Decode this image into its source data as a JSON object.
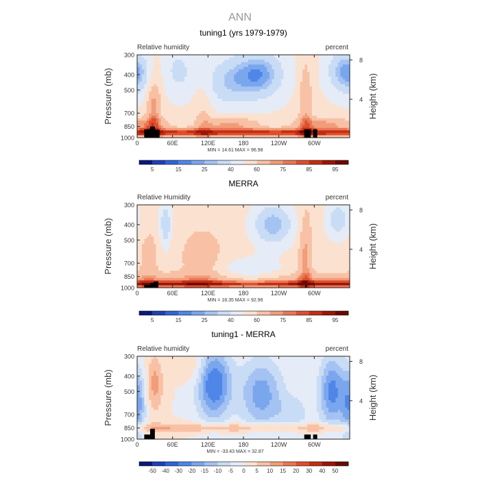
{
  "figure_title": "ANN",
  "colors": {
    "text": "#333333",
    "title_gray": "#999999",
    "frame": "#222222",
    "mask": "#000000"
  },
  "chart_data": [
    {
      "type": "heatmap",
      "title": "tuning1 (yrs 1979-1979)",
      "left_label": "Relative humidity",
      "right_label": "percent",
      "ylabel": "Pressure (mb)",
      "y2label": "Height (km)",
      "y_ticks": [
        "300",
        "400",
        "500",
        "700",
        "850",
        "1000"
      ],
      "y_tick_values": [
        300,
        400,
        500,
        700,
        850,
        1000
      ],
      "y2_ticks": [
        "8",
        "4"
      ],
      "y2_tick_values": [
        8,
        4
      ],
      "x_ticks": [
        "0",
        "60E",
        "120E",
        "180",
        "120W",
        "60W"
      ],
      "x_tick_values": [
        0,
        60,
        120,
        180,
        240,
        300
      ],
      "xlim": [
        0,
        360
      ],
      "ylim": [
        1000,
        300
      ],
      "min_max_text": "MIN =   14.61   MAX =   96.98",
      "min": 14.61,
      "max": 96.98,
      "colorbar": {
        "levels": [
          5,
          10,
          15,
          20,
          25,
          30,
          40,
          50,
          60,
          70,
          75,
          80,
          85,
          90,
          95
        ],
        "labels": [
          "5",
          "15",
          "25",
          "40",
          "60",
          "75",
          "85",
          "95"
        ],
        "label_levels": [
          5,
          15,
          25,
          40,
          60,
          75,
          85,
          95
        ],
        "colors": [
          "#0a1a7a",
          "#1f3fb4",
          "#2f63d8",
          "#4f86e8",
          "#7aa6ee",
          "#a4c2f2",
          "#c9dcf5",
          "#e5ecf7",
          "#fbe2d0",
          "#f8c1a5",
          "#f19d7a",
          "#e97655",
          "#dd4f2e",
          "#c42d12",
          "#9a1608",
          "#6a0a00"
        ]
      }
    },
    {
      "type": "heatmap",
      "title": "MERRA",
      "left_label": "Relative Humidity",
      "right_label": "percent",
      "ylabel": "Pressure (mb)",
      "y2label": "Height (km)",
      "y_ticks": [
        "300",
        "400",
        "500",
        "700",
        "850",
        "1000"
      ],
      "y_tick_values": [
        300,
        400,
        500,
        700,
        850,
        1000
      ],
      "y2_ticks": [
        "8",
        "4"
      ],
      "y2_tick_values": [
        8,
        4
      ],
      "x_ticks": [
        "0",
        "60E",
        "120E",
        "180",
        "120W",
        "60W"
      ],
      "x_tick_values": [
        0,
        60,
        120,
        180,
        240,
        300
      ],
      "xlim": [
        0,
        360
      ],
      "ylim": [
        1000,
        300
      ],
      "min_max_text": "MIN =   18.35   MAX =   92.96",
      "min": 18.35,
      "max": 92.96,
      "colorbar": {
        "levels": [
          5,
          10,
          15,
          20,
          25,
          30,
          40,
          50,
          60,
          70,
          75,
          80,
          85,
          90,
          95
        ],
        "labels": [
          "5",
          "15",
          "25",
          "40",
          "60",
          "75",
          "85",
          "95"
        ],
        "label_levels": [
          5,
          15,
          25,
          40,
          60,
          75,
          85,
          95
        ],
        "colors": [
          "#0a1a7a",
          "#1f3fb4",
          "#2f63d8",
          "#4f86e8",
          "#7aa6ee",
          "#a4c2f2",
          "#c9dcf5",
          "#e5ecf7",
          "#fbe2d0",
          "#f8c1a5",
          "#f19d7a",
          "#e97655",
          "#dd4f2e",
          "#c42d12",
          "#9a1608",
          "#6a0a00"
        ]
      }
    },
    {
      "type": "heatmap",
      "title": "tuning1 - MERRA",
      "left_label": "Relative humidity",
      "right_label": "percent",
      "ylabel": "Pressure (mb)",
      "y2label": "Height (km)",
      "y_ticks": [
        "300",
        "400",
        "500",
        "700",
        "850",
        "1000"
      ],
      "y_tick_values": [
        300,
        400,
        500,
        700,
        850,
        1000
      ],
      "y2_ticks": [
        "8",
        "4"
      ],
      "y2_tick_values": [
        8,
        4
      ],
      "x_ticks": [
        "0",
        "60E",
        "120E",
        "180",
        "120W",
        "60W"
      ],
      "x_tick_values": [
        0,
        60,
        120,
        180,
        240,
        300
      ],
      "xlim": [
        0,
        360
      ],
      "ylim": [
        1000,
        300
      ],
      "min_max_text": "MIN =  -33.43   MAX =   32.87",
      "min": -33.43,
      "max": 32.87,
      "colorbar": {
        "levels": [
          -50,
          -40,
          -30,
          -20,
          -15,
          -10,
          -5,
          0,
          5,
          10,
          15,
          20,
          30,
          40,
          50
        ],
        "labels": [
          "-50",
          "-40",
          "-30",
          "-20",
          "-15",
          "-10",
          "-5",
          "0",
          "5",
          "10",
          "15",
          "20",
          "30",
          "40",
          "50"
        ],
        "label_levels": [
          -50,
          -40,
          -30,
          -20,
          -15,
          -10,
          -5,
          0,
          5,
          10,
          15,
          20,
          30,
          40,
          50
        ],
        "colors": [
          "#0a1a7a",
          "#1f3fb4",
          "#2f63d8",
          "#4f86e8",
          "#7aa6ee",
          "#a4c2f2",
          "#c9dcf5",
          "#e5ecf7",
          "#fbe2d0",
          "#f8c1a5",
          "#f19d7a",
          "#e97655",
          "#dd4f2e",
          "#c42d12",
          "#9a1608",
          "#6a0a00"
        ]
      }
    }
  ]
}
